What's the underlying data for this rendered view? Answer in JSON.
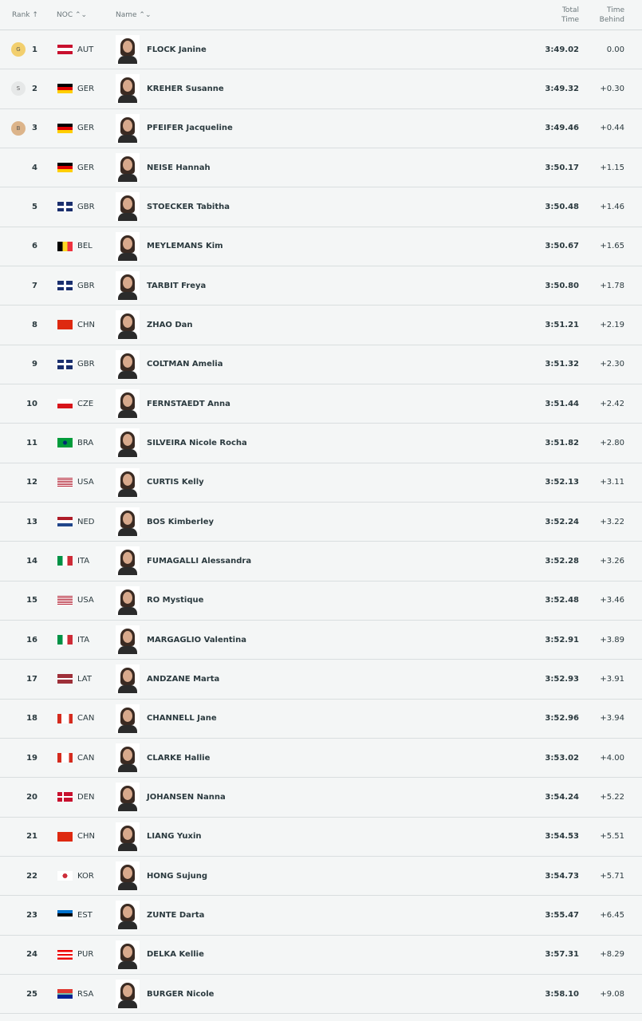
{
  "header": {
    "rank": "Rank ↑",
    "noc": "NOC ⌃⌄",
    "name": "Name ⌃⌄",
    "total_time_1": "Total",
    "total_time_2": "Time",
    "time_behind_1": "Time",
    "time_behind_2": "Behind"
  },
  "medal_colors": {
    "G": "#f2cf6e",
    "S": "#e6e8e8",
    "B": "#dcb48a"
  },
  "rows": [
    {
      "medal": "G",
      "rank": "1",
      "noc": "AUT",
      "name": "FLOCK Janine",
      "time": "3:49.02",
      "behind": "0.00"
    },
    {
      "medal": "S",
      "rank": "2",
      "noc": "GER",
      "name": "KREHER Susanne",
      "time": "3:49.32",
      "behind": "+0.30"
    },
    {
      "medal": "B",
      "rank": "3",
      "noc": "GER",
      "name": "PFEIFER Jacqueline",
      "time": "3:49.46",
      "behind": "+0.44"
    },
    {
      "rank": "4",
      "noc": "GER",
      "name": "NEISE Hannah",
      "time": "3:50.17",
      "behind": "+1.15"
    },
    {
      "rank": "5",
      "noc": "GBR",
      "name": "STOECKER Tabitha",
      "time": "3:50.48",
      "behind": "+1.46"
    },
    {
      "rank": "6",
      "noc": "BEL",
      "name": "MEYLEMANS Kim",
      "time": "3:50.67",
      "behind": "+1.65"
    },
    {
      "rank": "7",
      "noc": "GBR",
      "name": "TARBIT Freya",
      "time": "3:50.80",
      "behind": "+1.78"
    },
    {
      "rank": "8",
      "noc": "CHN",
      "name": "ZHAO Dan",
      "time": "3:51.21",
      "behind": "+2.19"
    },
    {
      "rank": "9",
      "noc": "GBR",
      "name": "COLTMAN Amelia",
      "time": "3:51.32",
      "behind": "+2.30"
    },
    {
      "rank": "10",
      "noc": "CZE",
      "name": "FERNSTAEDT Anna",
      "time": "3:51.44",
      "behind": "+2.42"
    },
    {
      "rank": "11",
      "noc": "BRA",
      "name": "SILVEIRA Nicole Rocha",
      "time": "3:51.82",
      "behind": "+2.80"
    },
    {
      "rank": "12",
      "noc": "USA",
      "name": "CURTIS Kelly",
      "time": "3:52.13",
      "behind": "+3.11"
    },
    {
      "rank": "13",
      "noc": "NED",
      "name": "BOS Kimberley",
      "time": "3:52.24",
      "behind": "+3.22"
    },
    {
      "rank": "14",
      "noc": "ITA",
      "name": "FUMAGALLI Alessandra",
      "time": "3:52.28",
      "behind": "+3.26"
    },
    {
      "rank": "15",
      "noc": "USA",
      "name": "RO Mystique",
      "time": "3:52.48",
      "behind": "+3.46"
    },
    {
      "rank": "16",
      "noc": "ITA",
      "name": "MARGAGLIO Valentina",
      "time": "3:52.91",
      "behind": "+3.89"
    },
    {
      "rank": "17",
      "noc": "LAT",
      "name": "ANDZANE Marta",
      "time": "3:52.93",
      "behind": "+3.91"
    },
    {
      "rank": "18",
      "noc": "CAN",
      "name": "CHANNELL Jane",
      "time": "3:52.96",
      "behind": "+3.94"
    },
    {
      "rank": "19",
      "noc": "CAN",
      "name": "CLARKE Hallie",
      "time": "3:53.02",
      "behind": "+4.00"
    },
    {
      "rank": "20",
      "noc": "DEN",
      "name": "JOHANSEN Nanna",
      "time": "3:54.24",
      "behind": "+5.22"
    },
    {
      "rank": "21",
      "noc": "CHN",
      "name": "LIANG Yuxin",
      "time": "3:54.53",
      "behind": "+5.51"
    },
    {
      "rank": "22",
      "noc": "KOR",
      "name": "HONG Sujung",
      "time": "3:54.73",
      "behind": "+5.71"
    },
    {
      "rank": "23",
      "noc": "EST",
      "name": "ZUNTE Darta",
      "time": "3:55.47",
      "behind": "+6.45"
    },
    {
      "rank": "24",
      "noc": "PUR",
      "name": "DELKA Kellie",
      "time": "3:57.31",
      "behind": "+8.29"
    },
    {
      "rank": "25",
      "noc": "RSA",
      "name": "BURGER Nicole",
      "time": "3:58.10",
      "behind": "+9.08"
    }
  ]
}
